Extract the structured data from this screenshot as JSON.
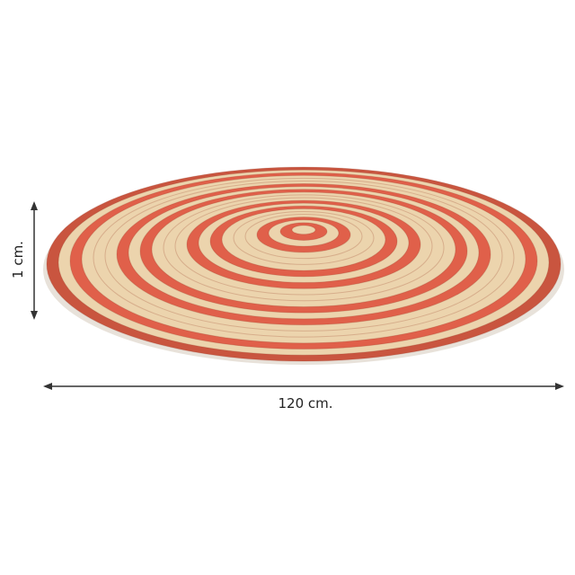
{
  "product": {
    "name": "round-braided-rug",
    "colors": {
      "coral": "#e0604a",
      "straw": "#ecd4ad",
      "edge": "#c9553f"
    }
  },
  "dimensions": {
    "width_label": "120 cm.",
    "height_label": "1 cm."
  }
}
